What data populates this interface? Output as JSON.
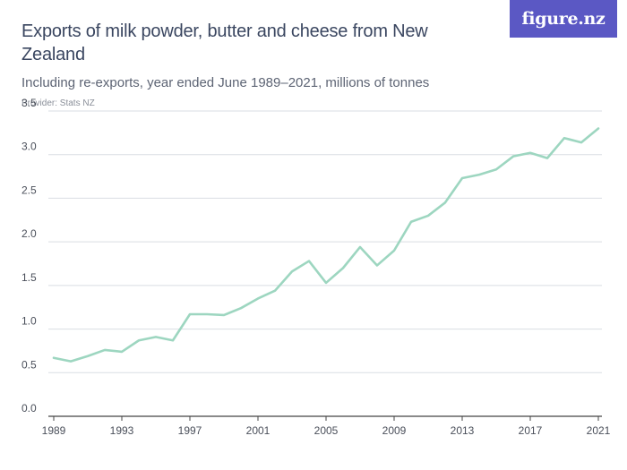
{
  "header": {
    "title": "Exports of milk powder, butter and cheese from New Zealand",
    "subtitle": "Including re-exports, year ended June 1989–2021, millions of tonnes",
    "provider": "Provider: Stats NZ"
  },
  "brand": {
    "logo_text": "figure.nz"
  },
  "colors": {
    "line": "#9dd6c0",
    "grid": "#d9dde3",
    "axis": "#444444",
    "brand": "#5b58c4"
  },
  "chart_data": {
    "type": "line",
    "title": "Exports of milk powder, butter and cheese from New Zealand",
    "subtitle": "Including re-exports, year ended June 1989–2021, millions of tonnes",
    "xlabel": "",
    "ylabel": "",
    "x": [
      1989,
      1990,
      1991,
      1992,
      1993,
      1994,
      1995,
      1996,
      1997,
      1998,
      1999,
      2000,
      2001,
      2002,
      2003,
      2004,
      2005,
      2006,
      2007,
      2008,
      2009,
      2010,
      2011,
      2012,
      2013,
      2014,
      2015,
      2016,
      2017,
      2018,
      2019,
      2020,
      2021
    ],
    "series": [
      {
        "values": [
          0.67,
          0.63,
          0.69,
          0.76,
          0.74,
          0.87,
          0.91,
          0.87,
          1.17,
          1.17,
          1.16,
          1.24,
          1.35,
          1.44,
          1.66,
          1.78,
          1.53,
          1.7,
          1.94,
          1.73,
          1.9,
          2.23,
          2.3,
          2.45,
          2.73,
          2.77,
          2.83,
          2.98,
          3.02,
          2.96,
          3.19,
          3.14,
          3.3
        ]
      }
    ],
    "ylim": [
      0,
      3.5
    ],
    "xlim": [
      1989,
      2021
    ],
    "yticks": [
      "0.0",
      "0.5",
      "1.0",
      "1.5",
      "2.0",
      "2.5",
      "3.0",
      "3.5"
    ],
    "xticks": [
      "1989",
      "1993",
      "1997",
      "2001",
      "2005",
      "2009",
      "2013",
      "2017",
      "2021"
    ],
    "grid": "horizontal",
    "legend": "none"
  }
}
